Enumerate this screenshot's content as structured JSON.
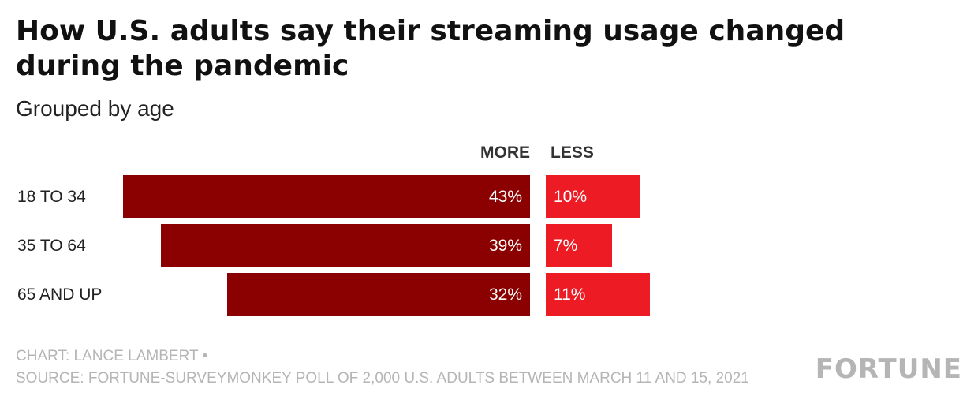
{
  "title": "How U.S. adults say their streaming usage changed during the pandemic",
  "subtitle": "Grouped by age",
  "footer": {
    "credit": "CHART: LANCE LAMBERT •",
    "source": "SOURCE: FORTUNE-SURVEYMONKEY POLL OF 2,000 U.S. ADULTS BETWEEN MARCH 11 AND 15, 2021"
  },
  "logo": "FORTUNE",
  "colors": {
    "more": "#8b0000",
    "less": "#ed1c24",
    "label_text": "#ffffff",
    "category_text": "#222222"
  },
  "chart_data": {
    "type": "bar",
    "categories": [
      "18 TO 34",
      "35 TO 64",
      "65 AND UP"
    ],
    "series": [
      {
        "name": "MORE",
        "values": [
          43,
          39,
          32
        ],
        "labels": [
          "43%",
          "39%",
          "32%"
        ]
      },
      {
        "name": "LESS",
        "values": [
          10,
          7,
          11
        ],
        "labels": [
          "10%",
          "7%",
          "11%"
        ]
      }
    ],
    "unit": "%",
    "grid": false,
    "legend": "column headers above bars"
  }
}
